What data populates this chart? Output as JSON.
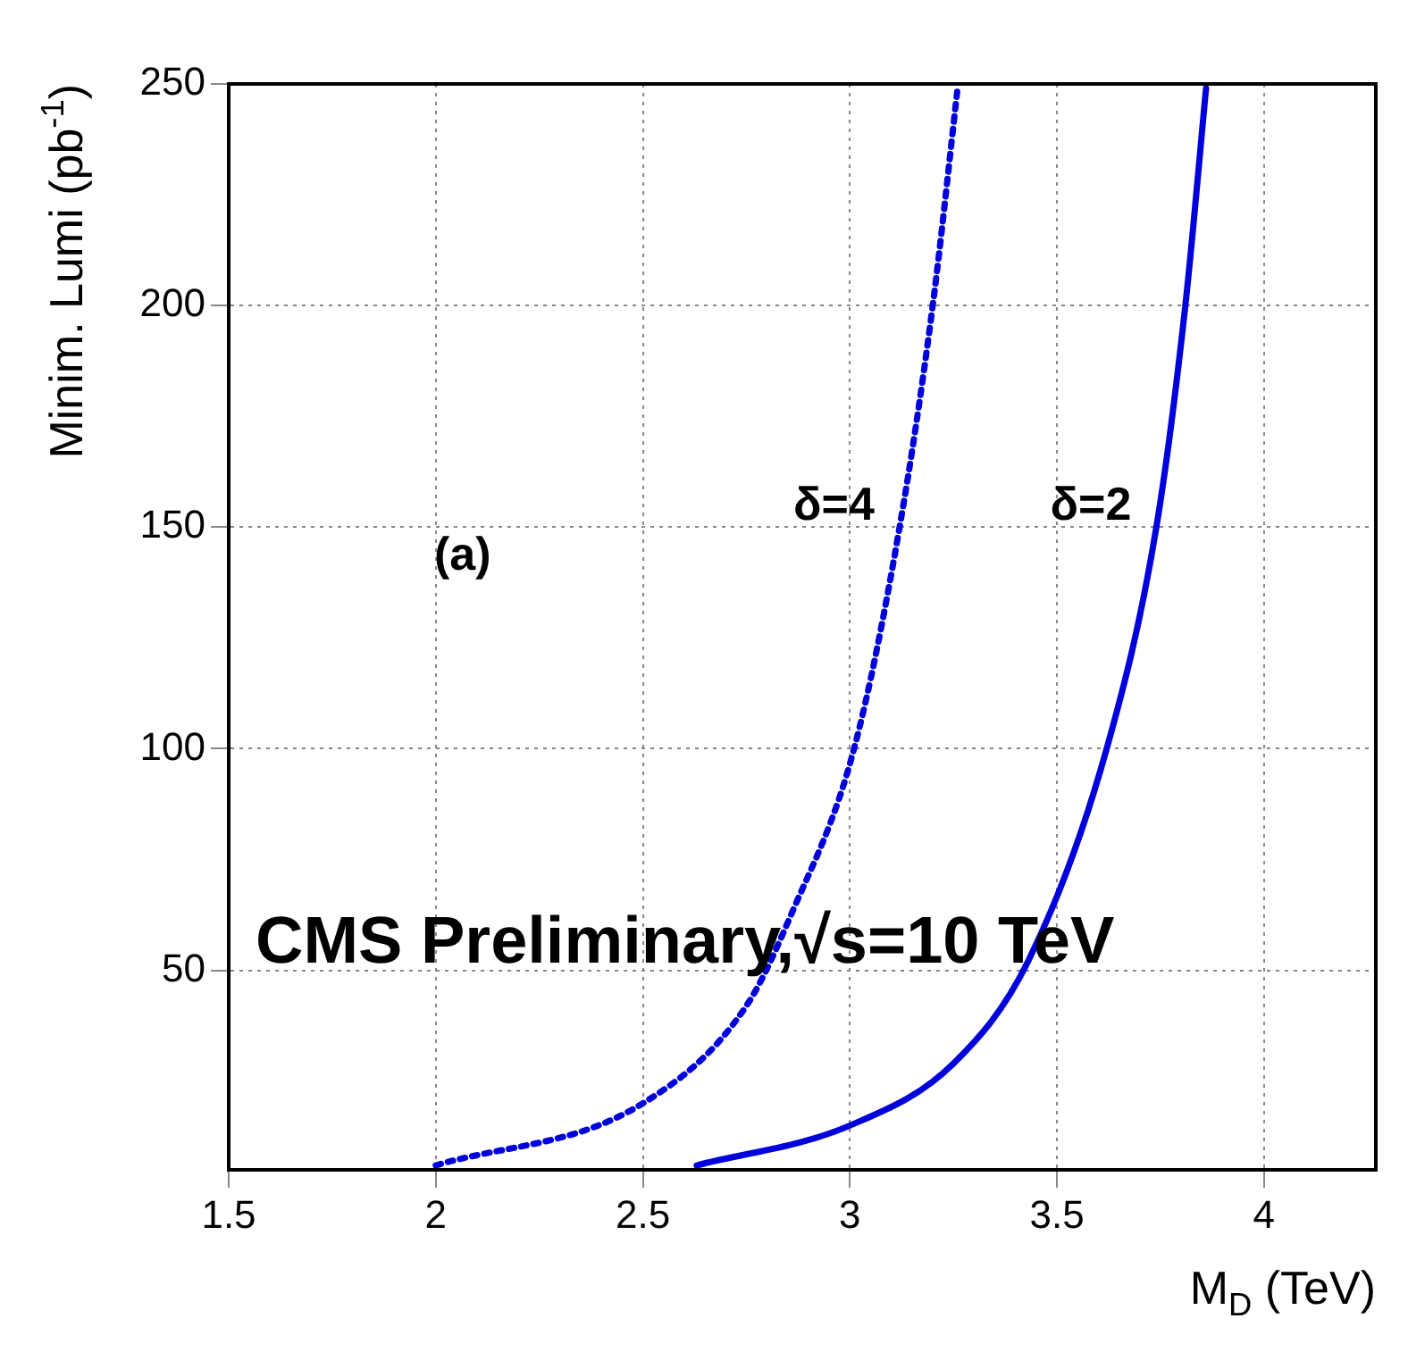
{
  "chart_data": {
    "type": "line",
    "xlabel": "M$_{D}$ (TeV)",
    "ylabel": "Minim. Lumi (pb$^{-1}$)",
    "xlim": [
      1.5,
      4.27
    ],
    "xticks": [
      1.5,
      2,
      2.5,
      3,
      3.5,
      4
    ],
    "ylim": [
      5,
      250
    ],
    "yticks": [
      50,
      100,
      150,
      200,
      250
    ],
    "grid": true,
    "legend": false,
    "marker": "none",
    "annotations": [
      "(a)",
      "CMS Preliminary,√s=10 TeV"
    ],
    "series": [
      {
        "name": "δ=4",
        "color": "#0000dd",
        "line_style": "dotted",
        "x": [
          2.0,
          2.5,
          2.75,
          2.86,
          3.01,
          3.12,
          3.2,
          3.26
        ],
        "values": [
          6,
          20,
          42,
          63,
          100,
          150,
          200,
          249
        ]
      },
      {
        "name": "δ=2",
        "color": "#0000dd",
        "line_style": "solid",
        "x": [
          2.63,
          3.0,
          3.25,
          3.43,
          3.62,
          3.74,
          3.81,
          3.86
        ],
        "values": [
          6,
          15,
          29,
          52,
          100,
          150,
          200,
          249
        ]
      }
    ]
  }
}
